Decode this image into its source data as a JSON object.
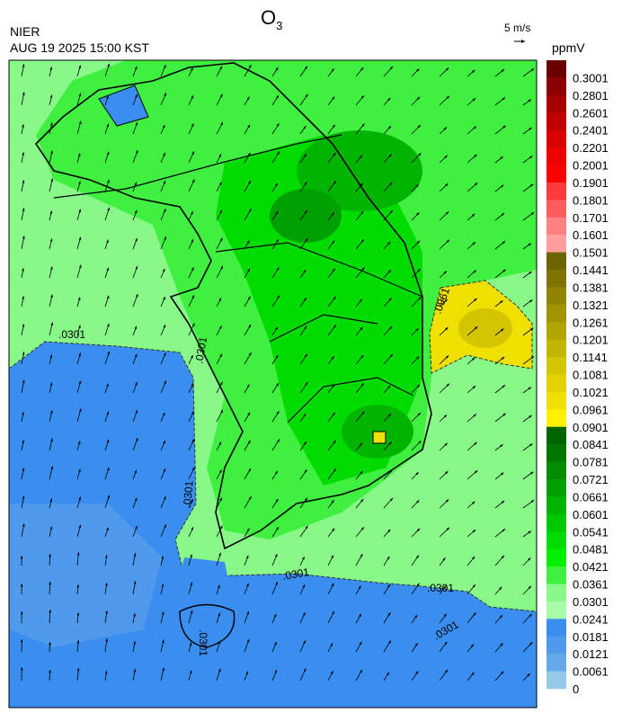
{
  "header": {
    "title": {
      "text": "O",
      "subscript": "3"
    },
    "agency": "NIER",
    "timestamp": "AUG 19 2025 15:00 KST",
    "wind_scale": "5 m/s"
  },
  "colorbar": {
    "unit": "ppmV",
    "levels": [
      0.3001,
      0.2801,
      0.2601,
      0.2401,
      0.2201,
      0.2001,
      0.1901,
      0.1801,
      0.1701,
      0.1601,
      0.1501,
      0.1441,
      0.1381,
      0.1321,
      0.1261,
      0.1201,
      0.1141,
      0.1081,
      0.1021,
      0.0961,
      0.0901,
      0.0841,
      0.0781,
      0.0721,
      0.0661,
      0.0601,
      0.0541,
      0.0481,
      0.0421,
      0.0361,
      0.0301,
      0.0241,
      0.0181,
      0.0121,
      0.0061,
      0
    ],
    "colors": [
      "#6b0000",
      "#8b0000",
      "#a50000",
      "#c00000",
      "#d80000",
      "#ee0000",
      "#ff0000",
      "#ff3a3a",
      "#ff5c5c",
      "#ff8080",
      "#ff9e9e",
      "#6b6400",
      "#7d7400",
      "#8f8500",
      "#a09400",
      "#b1a500",
      "#c2b500",
      "#d3c500",
      "#e2d300",
      "#efe000",
      "#fff200",
      "#006400",
      "#007800",
      "#008c00",
      "#00a000",
      "#00b400",
      "#00c800",
      "#00dc00",
      "#00f000",
      "#40f040",
      "#88f888",
      "#a8fca8",
      "#3a8ef0",
      "#4f9aec",
      "#64a8ea",
      "#96c8e8"
    ]
  },
  "contour_labels": [
    ".0301",
    ".0961",
    ".0301",
    ".0301",
    ".0301",
    ".0301",
    ".0301",
    ".0301"
  ]
}
